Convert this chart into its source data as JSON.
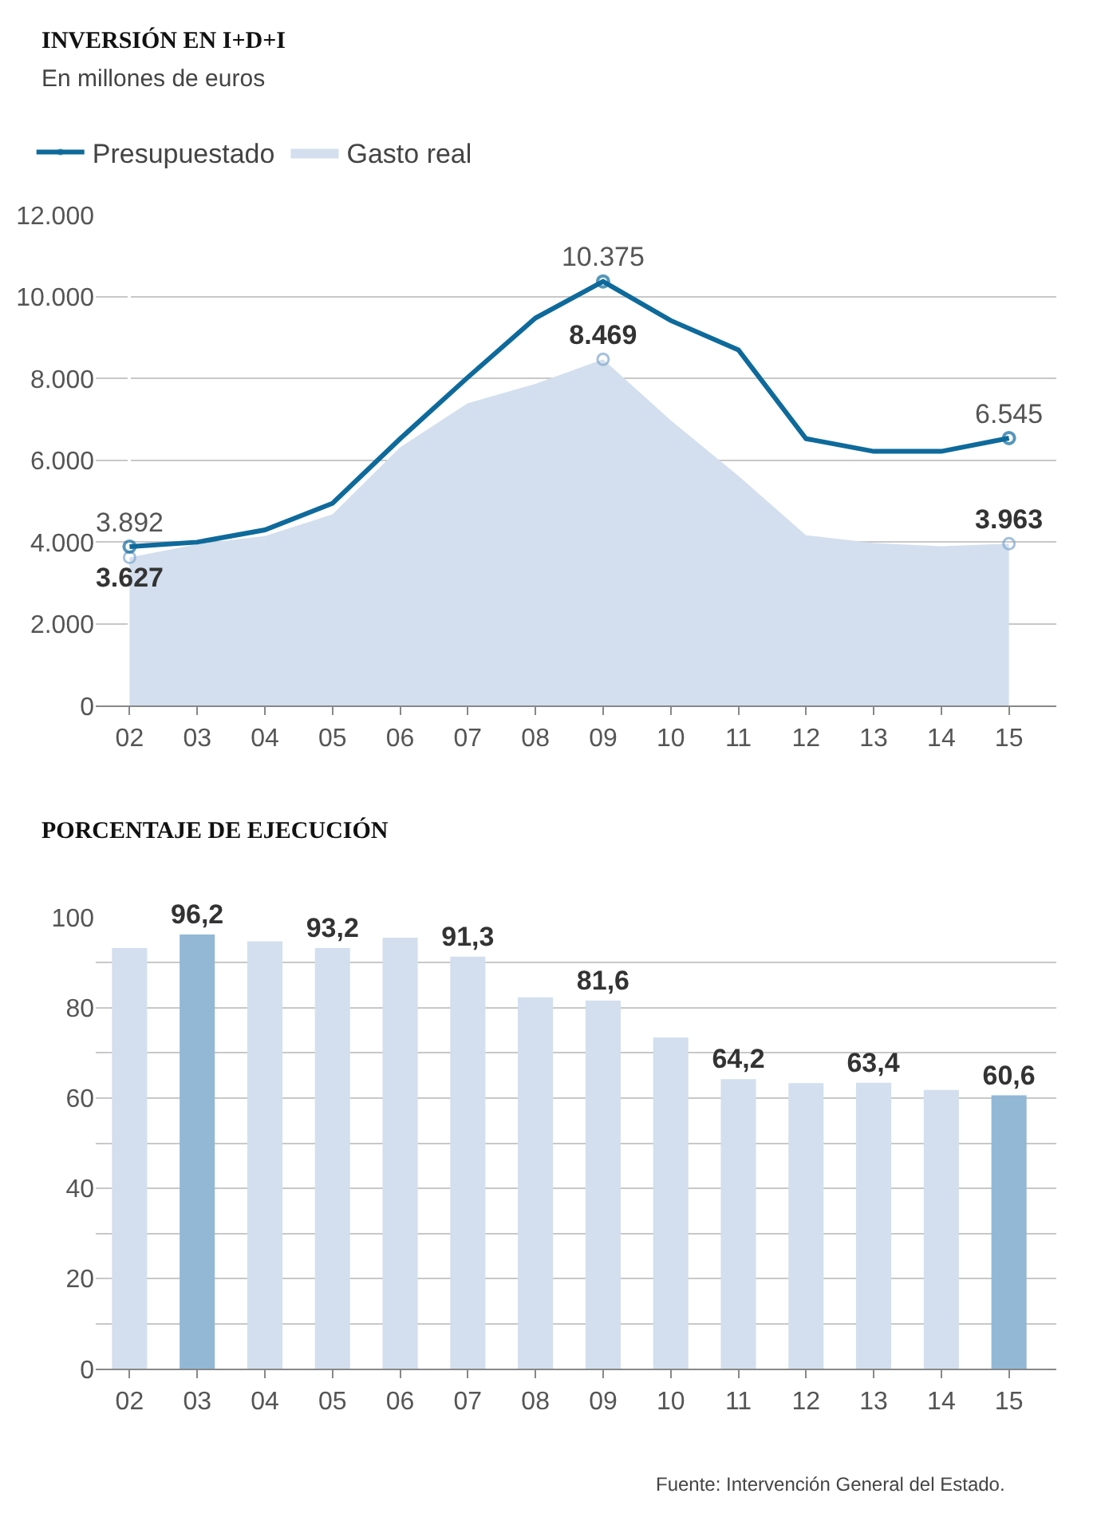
{
  "chart_data": [
    {
      "type": "line",
      "title": "INVERSIÓN EN I+D+I",
      "subtitle": "En millones de euros",
      "categories": [
        "02",
        "03",
        "04",
        "05",
        "06",
        "07",
        "08",
        "09",
        "10",
        "11",
        "12",
        "13",
        "14",
        "15"
      ],
      "series": [
        {
          "name": "Presupuestado",
          "type": "line",
          "color": "#0e6a9b",
          "values": [
            3892,
            4000,
            4300,
            4950,
            6530,
            8030,
            9480,
            10375,
            9420,
            8700,
            6530,
            6220,
            6220,
            6545
          ],
          "value_labels": [
            "3.892",
            null,
            null,
            null,
            null,
            null,
            null,
            "10.375",
            null,
            null,
            null,
            null,
            null,
            "6.545"
          ]
        },
        {
          "name": "Gasto real",
          "type": "area",
          "color": "#d3dfee",
          "values": [
            3627,
            3950,
            4150,
            4680,
            6320,
            7400,
            7870,
            8469,
            6980,
            5620,
            4170,
            3980,
            3900,
            3963
          ],
          "value_labels": [
            "3.627",
            null,
            null,
            null,
            null,
            null,
            null,
            "8.469",
            null,
            null,
            null,
            null,
            null,
            "3.963"
          ]
        }
      ],
      "ylim": [
        0,
        12000
      ],
      "yticks": [
        {
          "value": 0,
          "label": "0"
        },
        {
          "value": 2000,
          "label": "2.000"
        },
        {
          "value": 4000,
          "label": "4.000"
        },
        {
          "value": 6000,
          "label": "6.000"
        },
        {
          "value": 8000,
          "label": "8.000"
        },
        {
          "value": 10000,
          "label": "10.000"
        },
        {
          "value": 12000,
          "label": "12.000"
        }
      ],
      "grid": "y",
      "legend": "top left",
      "line_style": "solid"
    },
    {
      "type": "bar",
      "title": "PORCENTAJE DE EJECUCIÓN",
      "categories": [
        "02",
        "03",
        "04",
        "05",
        "06",
        "07",
        "08",
        "09",
        "10",
        "11",
        "12",
        "13",
        "14",
        "15"
      ],
      "values": [
        93.2,
        96.2,
        94.7,
        93.2,
        95.5,
        91.3,
        82.3,
        81.6,
        73.4,
        64.2,
        63.3,
        63.4,
        61.8,
        60.6
      ],
      "colors": [
        "#d3dfee",
        "#92b8d6",
        "#d3dfee",
        "#d3dfee",
        "#d3dfee",
        "#d3dfee",
        "#d3dfee",
        "#d3dfee",
        "#d3dfee",
        "#d3dfee",
        "#d3dfee",
        "#d3dfee",
        "#d3dfee",
        "#92b8d6"
      ],
      "value_labels": [
        null,
        "96,2",
        null,
        "93,2",
        null,
        "91,3",
        null,
        "81,6",
        null,
        "64,2",
        null,
        "63,4",
        null,
        "60,6"
      ],
      "ylim": [
        0,
        100
      ],
      "yticks": [
        0,
        {
          "value": 10,
          "label": null
        },
        20,
        {
          "value": 30,
          "label": null
        },
        40,
        {
          "value": 50,
          "label": null
        },
        60,
        {
          "value": 70,
          "label": null
        },
        80,
        {
          "value": 90,
          "label": null
        },
        100
      ],
      "grid": "y",
      "legend": false,
      "annotations": [
        "Fuente: Intervención General del Estado."
      ]
    }
  ]
}
